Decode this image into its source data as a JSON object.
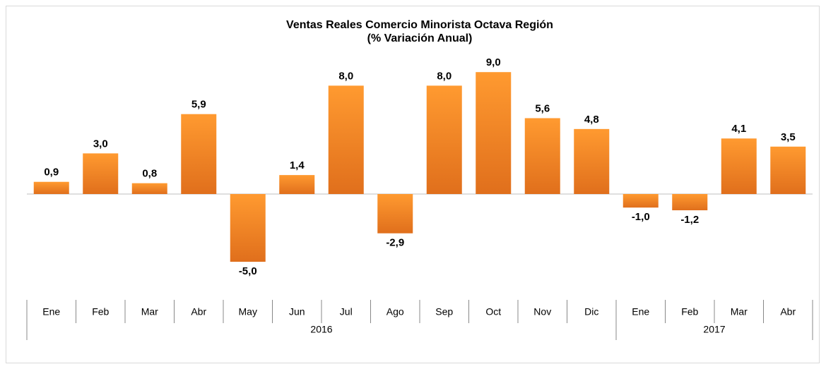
{
  "chart_data": {
    "type": "bar",
    "title": "Ventas Reales Comercio Minorista Octava Región",
    "subtitle": "(% Variación Anual)",
    "groups": [
      {
        "name": "2016",
        "categories": [
          "Ene",
          "Feb",
          "Mar",
          "Abr",
          "May",
          "Jun",
          "Jul",
          "Ago",
          "Sep",
          "Oct",
          "Nov",
          "Dic"
        ]
      },
      {
        "name": "2017",
        "categories": [
          "Ene",
          "Feb",
          "Mar",
          "Abr"
        ]
      }
    ],
    "values": [
      0.9,
      3.0,
      0.8,
      5.9,
      -5.0,
      1.4,
      8.0,
      -2.9,
      8.0,
      9.0,
      5.6,
      4.8,
      -1.0,
      -1.2,
      4.1,
      3.5
    ],
    "value_labels": [
      "0,9",
      "3,0",
      "0,8",
      "5,9",
      "-5,0",
      "1,4",
      "8,0",
      "-2,9",
      "8,0",
      "9,0",
      "5,6",
      "4,8",
      "-1,0",
      "-1,2",
      "4,1",
      "3,5"
    ],
    "color": "#f7931e"
  }
}
